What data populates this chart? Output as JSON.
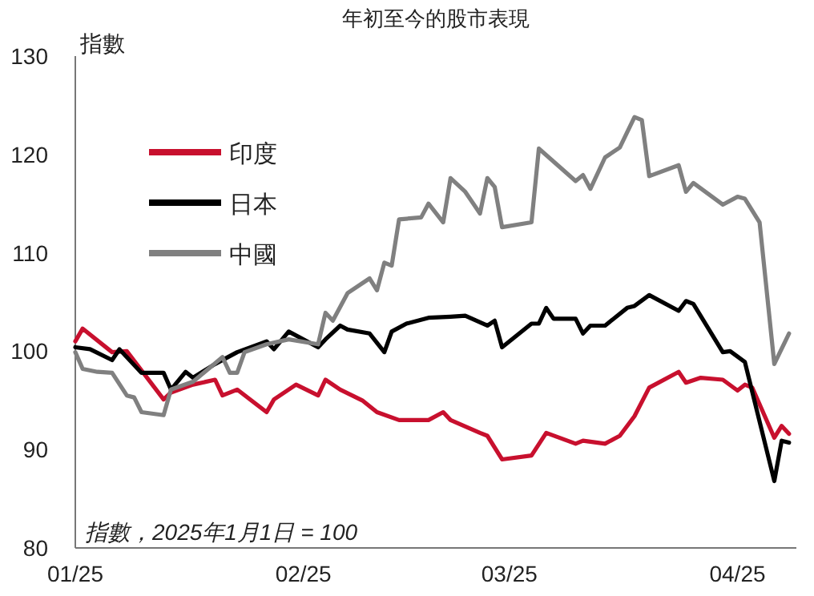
{
  "chart_data": {
    "type": "line",
    "title": "年初至今的股市表現",
    "ylabel": "指數",
    "annotations": [
      "指數，2025年1月1日 = 100"
    ],
    "xlim": [
      "2025-01-01",
      "2025-04-09"
    ],
    "xticks": [
      {
        "value": "2025-01-01",
        "label": "01/25"
      },
      {
        "value": "2025-02-01",
        "label": "02/25"
      },
      {
        "value": "2025-03-01",
        "label": "03/25"
      },
      {
        "value": "2025-04-01",
        "label": "04/25"
      }
    ],
    "ylim": [
      80,
      130
    ],
    "yticks": [
      80,
      90,
      100,
      110,
      120,
      130
    ],
    "grid": false,
    "legend": "top left",
    "line_style": "solid",
    "marker": "none",
    "series": [
      {
        "name": "印度",
        "color": "#c8102e",
        "x": [
          "2025-01-01",
          "2025-01-02",
          "2025-01-06",
          "2025-01-08",
          "2025-01-13",
          "2025-01-14",
          "2025-01-17",
          "2025-01-20",
          "2025-01-21",
          "2025-01-23",
          "2025-01-27",
          "2025-01-28",
          "2025-01-31",
          "2025-02-03",
          "2025-02-04",
          "2025-02-06",
          "2025-02-09",
          "2025-02-11",
          "2025-02-14",
          "2025-02-18",
          "2025-02-20",
          "2025-02-21",
          "2025-02-25",
          "2025-02-26",
          "2025-02-28",
          "2025-03-04",
          "2025-03-06",
          "2025-03-10",
          "2025-03-11",
          "2025-03-14",
          "2025-03-16",
          "2025-03-18",
          "2025-03-20",
          "2025-03-24",
          "2025-03-25",
          "2025-03-27",
          "2025-03-30",
          "2025-04-01",
          "2025-04-02",
          "2025-04-03",
          "2025-04-06",
          "2025-04-07",
          "2025-04-08"
        ],
        "values": [
          101.0,
          102.3,
          99.9,
          100.0,
          95.1,
          95.8,
          96.6,
          97.1,
          95.5,
          96.1,
          93.8,
          95.1,
          96.6,
          95.5,
          97.1,
          96.1,
          95.0,
          93.8,
          93.0,
          93.0,
          93.8,
          93.0,
          91.7,
          91.4,
          89.0,
          89.4,
          91.7,
          90.6,
          90.9,
          90.6,
          91.4,
          93.4,
          96.3,
          97.9,
          96.8,
          97.3,
          97.1,
          96.0,
          96.6,
          96.3,
          91.2,
          92.4,
          91.6
        ]
      },
      {
        "name": "日本",
        "color": "#000000",
        "x": [
          "2025-01-01",
          "2025-01-03",
          "2025-01-06",
          "2025-01-07",
          "2025-01-10",
          "2025-01-13",
          "2025-01-14",
          "2025-01-16",
          "2025-01-17",
          "2025-01-20",
          "2025-01-23",
          "2025-01-27",
          "2025-01-28",
          "2025-01-30",
          "2025-02-03",
          "2025-02-04",
          "2025-02-06",
          "2025-02-07",
          "2025-02-10",
          "2025-02-12",
          "2025-02-13",
          "2025-02-15",
          "2025-02-18",
          "2025-02-21",
          "2025-02-23",
          "2025-02-26",
          "2025-02-27",
          "2025-02-28",
          "2025-03-04",
          "2025-03-05",
          "2025-03-06",
          "2025-03-07",
          "2025-03-10",
          "2025-03-11",
          "2025-03-12",
          "2025-03-14",
          "2025-03-17",
          "2025-03-18",
          "2025-03-20",
          "2025-03-24",
          "2025-03-25",
          "2025-03-26",
          "2025-03-30",
          "2025-03-31",
          "2025-04-02",
          "2025-04-06",
          "2025-04-07",
          "2025-04-08"
        ],
        "values": [
          100.4,
          100.2,
          99.1,
          100.2,
          97.8,
          97.8,
          96.1,
          97.9,
          97.3,
          98.7,
          99.9,
          101.0,
          100.2,
          102.0,
          100.4,
          101.2,
          102.6,
          102.2,
          101.8,
          99.9,
          102.0,
          102.8,
          103.4,
          103.5,
          103.6,
          102.6,
          103.1,
          100.4,
          102.8,
          102.8,
          104.4,
          103.3,
          103.3,
          101.8,
          102.6,
          102.6,
          104.4,
          104.6,
          105.7,
          104.1,
          105.1,
          104.8,
          99.9,
          100.0,
          98.9,
          86.8,
          90.9,
          90.7
        ]
      },
      {
        "name": "中國",
        "color": "#808080",
        "x": [
          "2025-01-01",
          "2025-01-02",
          "2025-01-04",
          "2025-01-06",
          "2025-01-08",
          "2025-01-09",
          "2025-01-10",
          "2025-01-13",
          "2025-01-14",
          "2025-01-17",
          "2025-01-21",
          "2025-01-22",
          "2025-01-23",
          "2025-01-24",
          "2025-01-27",
          "2025-01-30",
          "2025-02-03",
          "2025-02-04",
          "2025-02-05",
          "2025-02-07",
          "2025-02-10",
          "2025-02-11",
          "2025-02-12",
          "2025-02-13",
          "2025-02-14",
          "2025-02-17",
          "2025-02-18",
          "2025-02-20",
          "2025-02-21",
          "2025-02-23",
          "2025-02-25",
          "2025-02-26",
          "2025-02-27",
          "2025-02-28",
          "2025-03-04",
          "2025-03-05",
          "2025-03-10",
          "2025-03-11",
          "2025-03-12",
          "2025-03-14",
          "2025-03-16",
          "2025-03-18",
          "2025-03-19",
          "2025-03-20",
          "2025-03-24",
          "2025-03-25",
          "2025-03-26",
          "2025-03-30",
          "2025-04-01",
          "2025-04-02",
          "2025-04-04",
          "2025-04-06",
          "2025-04-08"
        ],
        "values": [
          99.9,
          98.2,
          97.9,
          97.8,
          95.5,
          95.3,
          93.8,
          93.5,
          96.1,
          96.9,
          99.4,
          97.8,
          97.8,
          99.9,
          100.7,
          101.2,
          100.7,
          103.9,
          103.1,
          105.9,
          107.4,
          106.2,
          109.0,
          108.7,
          113.4,
          113.6,
          115.0,
          113.1,
          117.6,
          116.2,
          114.0,
          117.6,
          116.7,
          112.6,
          113.1,
          120.6,
          117.3,
          117.9,
          116.5,
          119.7,
          120.7,
          123.8,
          123.5,
          117.8,
          118.9,
          116.2,
          117.1,
          114.9,
          115.7,
          115.5,
          113.1,
          98.7,
          101.8
        ]
      }
    ]
  }
}
